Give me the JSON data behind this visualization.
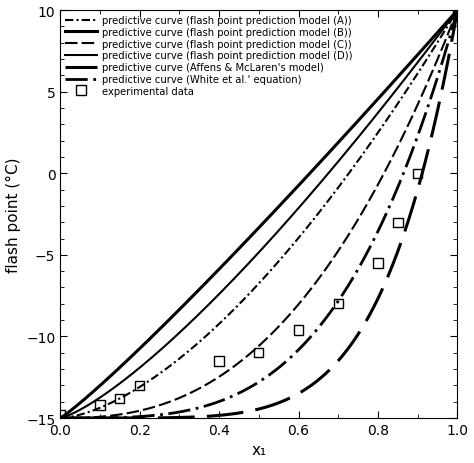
{
  "title": "",
  "xlabel": "x₁",
  "ylabel": "flash point (°C)",
  "xlim": [
    0,
    1
  ],
  "ylim": [
    -15,
    10
  ],
  "yticks": [
    -15,
    -10,
    -5,
    0,
    5,
    10
  ],
  "xticks": [
    0,
    0.2,
    0.4,
    0.6,
    0.8,
    1.0
  ],
  "exp_x": [
    0.0,
    0.1,
    0.15,
    0.2,
    0.4,
    0.5,
    0.6,
    0.7,
    0.8,
    0.85,
    0.9,
    1.0
  ],
  "exp_y": [
    -14.8,
    -14.2,
    -13.8,
    -13.0,
    -11.5,
    -11.0,
    -9.6,
    -8.0,
    -5.5,
    -3.0,
    0.0,
    9.8
  ],
  "labels": [
    "predictive curve (flash point prediction model (A))",
    "predictive curve (flash point prediction model (B))",
    "predictive curve (flash point prediction model (C))",
    "predictive curve (flash point prediction model (D))",
    "predictive curve (Affens & McLaren's model)",
    "predictive curve (White et al.' equation)",
    "experimental data"
  ],
  "curve_powers": [
    1.6,
    1.1,
    2.5,
    1.3,
    5.5,
    3.5
  ],
  "curve_lw": [
    1.5,
    2.2,
    1.5,
    1.5,
    2.2,
    2.0
  ],
  "background_color": "#ffffff",
  "legend_fontsize": 7.5,
  "axis_fontsize": 11,
  "tick_fontsize": 10
}
